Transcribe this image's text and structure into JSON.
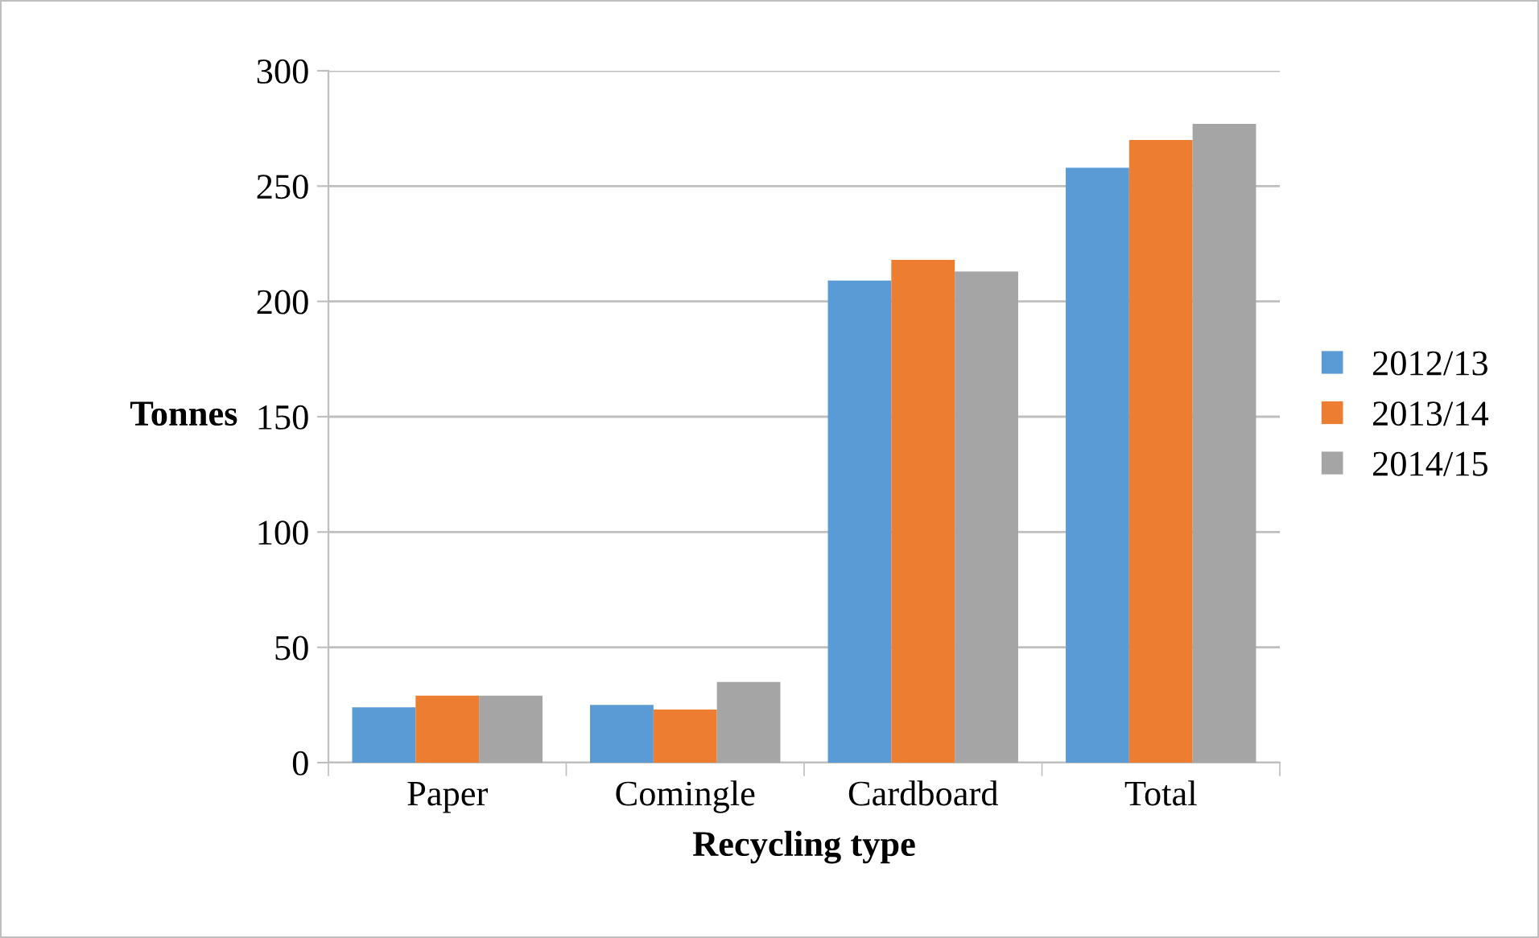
{
  "chart_data": {
    "type": "bar",
    "xlabel": "Recycling type",
    "ylabel": "Tonnes",
    "categories": [
      "Paper",
      "Comingle",
      "Cardboard",
      "Total"
    ],
    "series": [
      {
        "name": "2012/13",
        "color": "#5b9bd5",
        "values": [
          24,
          25,
          209,
          258
        ]
      },
      {
        "name": "2013/14",
        "color": "#ed7d31",
        "values": [
          29,
          23,
          218,
          270
        ]
      },
      {
        "name": "2014/15",
        "color": "#a5a5a5",
        "values": [
          29,
          35,
          213,
          277
        ]
      }
    ],
    "ylim": [
      0,
      300
    ],
    "yticks": [
      0,
      50,
      100,
      150,
      200,
      250,
      300
    ],
    "grid": "y",
    "legend": "right"
  }
}
